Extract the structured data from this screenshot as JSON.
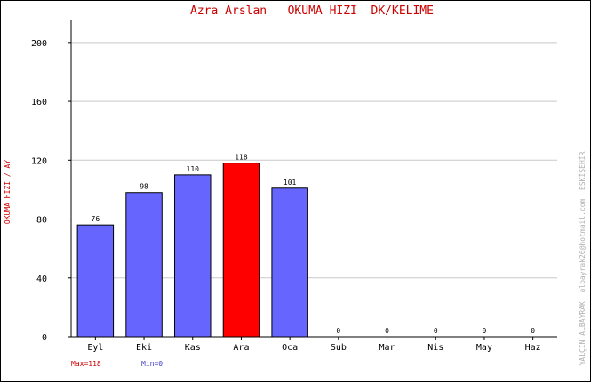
{
  "chart_data": {
    "type": "bar",
    "title": "Azra Arslan   OKUMA HIZI  DK/KELIME",
    "ylabel": "OKUMA HIZI / AY",
    "xlabel": "",
    "categories": [
      "Eyl",
      "Eki",
      "Kas",
      "Ara",
      "Oca",
      "Sub",
      "Mar",
      "Nis",
      "May",
      "Haz"
    ],
    "values": [
      76,
      98,
      110,
      118,
      101,
      0,
      0,
      0,
      0,
      0
    ],
    "data_labels": [
      "76",
      "98",
      "110",
      "118",
      "101",
      "0",
      "0",
      "0",
      "0",
      "0"
    ],
    "ylim": [
      0,
      215
    ],
    "yticks": [
      0,
      40,
      80,
      120,
      160,
      200
    ],
    "grid": true,
    "legend": "none",
    "max_label": "Max=118",
    "min_label": "Min=0",
    "highlight_index": 3,
    "colors": {
      "bar": "#6666ff",
      "highlight": "#ff0000",
      "title": "#cc0000",
      "ylabel": "#cc0000",
      "max_label": "#cc0000",
      "min_label": "#4444cc",
      "grid": "#c8c8c8",
      "watermark": "#b0b0b0"
    },
    "watermark": "YALÇIN ALBAYRAK  albayrak26@hotmail.com  ESKİŞEHİR"
  }
}
